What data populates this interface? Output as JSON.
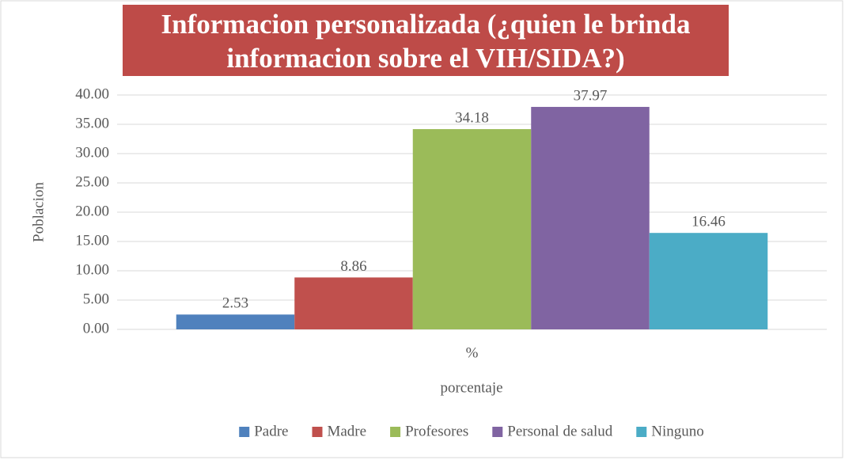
{
  "chart_data": {
    "type": "bar",
    "title": "Informacion personalizada (¿quien le brinda informacion sobre el VIH/SIDA?)",
    "y_label": "Poblacion",
    "x_label": "porcentaje",
    "categories": [
      "%"
    ],
    "series": [
      {
        "name": "Padre",
        "color": "#4f81bd",
        "values": [
          2.53
        ]
      },
      {
        "name": "Madre",
        "color": "#c0504d",
        "values": [
          8.86
        ]
      },
      {
        "name": "Profesores",
        "color": "#9bbb59",
        "values": [
          34.18
        ]
      },
      {
        "name": "Personal de salud",
        "color": "#8064a2",
        "values": [
          37.97
        ]
      },
      {
        "name": "Ninguno",
        "color": "#4bacc6",
        "values": [
          16.46
        ]
      }
    ],
    "ylim": [
      0,
      40
    ],
    "yticks": [
      {
        "value": 0,
        "label": "0.00"
      },
      {
        "value": 5,
        "label": "5.00"
      },
      {
        "value": 10,
        "label": "10.00"
      },
      {
        "value": 15,
        "label": "15.00"
      },
      {
        "value": 20,
        "label": "20.00"
      },
      {
        "value": 25,
        "label": "25.00"
      },
      {
        "value": 30,
        "label": "30.00"
      },
      {
        "value": 35,
        "label": "35.00"
      },
      {
        "value": 40,
        "label": "40.00"
      }
    ],
    "grid": true,
    "legend": "bottom"
  }
}
